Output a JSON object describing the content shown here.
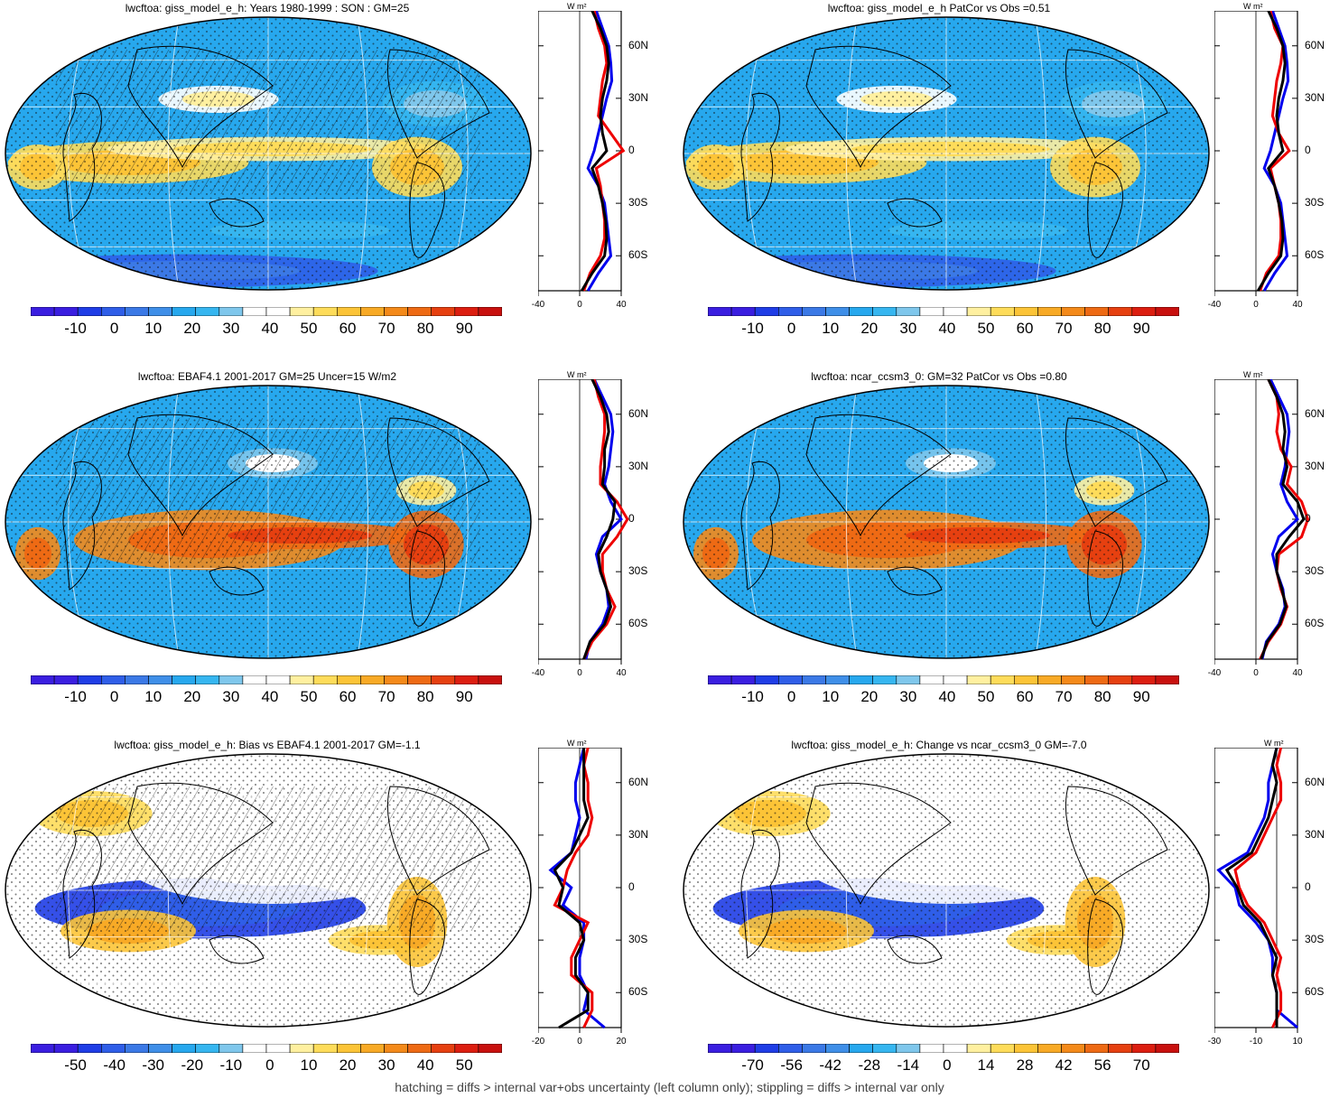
{
  "footer": "hatching = diffs > internal var+obs uncertainty (left column only); stippling = diffs > internal var only",
  "colors": {
    "absolute_scale": [
      "#3a1ee0",
      "#1f3de6",
      "#2f5ee8",
      "#3b79e6",
      "#3f8fe8",
      "#27a8ee",
      "#36b6f0",
      "#7fc7ec",
      "#ffffff",
      "#ffffff",
      "#fff0a0",
      "#fedc5a",
      "#fcc437",
      "#f8aa26",
      "#f48a1a",
      "#ee6a14",
      "#e64010",
      "#dc1e10",
      "#c8100e"
    ],
    "bias_scale": [
      "#3a1ee0",
      "#1f3de6",
      "#2f5ee8",
      "#3b79e6",
      "#3f8fe8",
      "#27a8ee",
      "#36b6f0",
      "#7fc7ec",
      "#ffffff",
      "#ffffff",
      "#fff0a0",
      "#fedc5a",
      "#fcc437",
      "#f8aa26",
      "#f48a1a",
      "#ee6a14",
      "#e64010",
      "#dc1e10",
      "#c8100e"
    ],
    "model_line": "#0000ee",
    "obs_line": "#ee0000",
    "mean_line": "#000000"
  },
  "chart_data": [
    {
      "type": "heatmap",
      "title": "lwcftoa: giss_model_e_h: Years 1980-1999 : SON : GM=25",
      "colorbar_labels": [
        "-10",
        "0",
        "10",
        "20",
        "30",
        "40",
        "50",
        "60",
        "70",
        "80",
        "90"
      ],
      "zonal_mean_profile": {
        "units": "W m²",
        "xticks": [
          "-40",
          "0",
          "40"
        ],
        "xlim": [
          -40,
          40
        ],
        "lat_labels": [
          "60N",
          "30N",
          "0",
          "30S",
          "60S"
        ],
        "lat": [
          80,
          70,
          60,
          50,
          40,
          30,
          20,
          10,
          0,
          -10,
          -20,
          -30,
          -40,
          -50,
          -60,
          -70,
          -80
        ],
        "series": [
          {
            "values": [
              16,
              22,
              28,
              30,
              31,
              26,
              22,
              18,
              14,
              8,
              18,
              24,
              26,
              28,
              30,
              18,
              8
            ]
          },
          {
            "values": [
              14,
              18,
              24,
              26,
              22,
              20,
              18,
              30,
              42,
              16,
              20,
              22,
              24,
              24,
              20,
              10,
              4
            ]
          },
          {
            "values": [
              12,
              20,
              26,
              28,
              26,
              22,
              20,
              22,
              26,
              12,
              18,
              22,
              25,
              26,
              24,
              12,
              2
            ]
          }
        ]
      }
    },
    {
      "type": "heatmap",
      "title": "lwcftoa: giss_model_e_h PatCor vs Obs =0.51",
      "colorbar_labels": [
        "-10",
        "0",
        "10",
        "20",
        "30",
        "40",
        "50",
        "60",
        "70",
        "80",
        "90"
      ],
      "zonal_mean_profile": {
        "units": "W m²",
        "xticks": [
          "-40",
          "0",
          "40"
        ],
        "xlim": [
          -40,
          40
        ],
        "lat_labels": [
          "60N",
          "30N",
          "0",
          "30S",
          "60S"
        ],
        "lat": [
          80,
          70,
          60,
          50,
          40,
          30,
          20,
          10,
          0,
          -10,
          -20,
          -30,
          -40,
          -50,
          -60,
          -70,
          -80
        ],
        "series": [
          {
            "values": [
              16,
              22,
              28,
              30,
              31,
              26,
              22,
              18,
              14,
              8,
              18,
              24,
              26,
              28,
              30,
              18,
              8
            ]
          },
          {
            "values": [
              14,
              18,
              26,
              24,
              20,
              18,
              16,
              22,
              32,
              14,
              18,
              22,
              24,
              24,
              22,
              10,
              4
            ]
          },
          {
            "values": [
              12,
              20,
              26,
              28,
              26,
              22,
              20,
              22,
              26,
              12,
              18,
              22,
              25,
              26,
              24,
              12,
              2
            ]
          }
        ]
      }
    },
    {
      "type": "heatmap",
      "title": "lwcftoa: EBAF4.1 2001-2017 GM=25 Uncer=15 W/m2",
      "colorbar_labels": [
        "-10",
        "0",
        "10",
        "20",
        "30",
        "40",
        "50",
        "60",
        "70",
        "80",
        "90"
      ],
      "zonal_mean_profile": {
        "units": "W m²",
        "xticks": [
          "-40",
          "0",
          "40"
        ],
        "xlim": [
          -40,
          40
        ],
        "lat_labels": [
          "60N",
          "30N",
          "0",
          "30S",
          "60S"
        ],
        "lat": [
          80,
          70,
          60,
          50,
          40,
          30,
          20,
          10,
          0,
          -10,
          -20,
          -30,
          -40,
          -50,
          -60,
          -70,
          -80
        ],
        "series": [
          {
            "values": [
              14,
              22,
              30,
              32,
              30,
              28,
              24,
              30,
              40,
              22,
              16,
              20,
              26,
              28,
              22,
              10,
              6
            ]
          },
          {
            "values": [
              14,
              18,
              24,
              24,
              22,
              20,
              20,
              36,
              46,
              36,
              22,
              22,
              26,
              34,
              26,
              12,
              4
            ]
          },
          {
            "values": [
              12,
              20,
              26,
              28,
              24,
              24,
              22,
              34,
              32,
              26,
              18,
              20,
              26,
              30,
              24,
              10,
              4
            ]
          }
        ]
      }
    },
    {
      "type": "heatmap",
      "title": "lwcftoa: ncar_ccsm3_0: GM=32 PatCor vs Obs =0.80",
      "colorbar_labels": [
        "-10",
        "0",
        "10",
        "20",
        "30",
        "40",
        "50",
        "60",
        "70",
        "80",
        "90"
      ],
      "zonal_mean_profile": {
        "units": "W m²",
        "xticks": [
          "-40",
          "0",
          "40"
        ],
        "xlim": [
          -40,
          40
        ],
        "lat_labels": [
          "60N",
          "30N",
          "0",
          "30S",
          "60S"
        ],
        "lat": [
          80,
          70,
          60,
          50,
          40,
          30,
          20,
          10,
          0,
          -10,
          -20,
          -30,
          -40,
          -50,
          -60,
          -70,
          -80
        ],
        "series": [
          {
            "values": [
              14,
              22,
              30,
              32,
              30,
              28,
              24,
              30,
              40,
              22,
              16,
              20,
              26,
              28,
              22,
              10,
              6
            ]
          },
          {
            "values": [
              12,
              20,
              22,
              20,
              24,
              34,
              30,
              44,
              50,
              44,
              22,
              20,
              24,
              30,
              24,
              12,
              4
            ]
          },
          {
            "values": [
              12,
              20,
              26,
              28,
              26,
              30,
              26,
              40,
              46,
              32,
              20,
              20,
              25,
              29,
              23,
              11,
              5
            ]
          }
        ]
      }
    },
    {
      "type": "heatmap",
      "title": "lwcftoa: giss_model_e_h: Bias vs EBAF4.1 2001-2017  GM=-1.1",
      "colorbar_labels": [
        "-50",
        "-40",
        "-30",
        "-20",
        "-10",
        "0",
        "10",
        "20",
        "30",
        "40",
        "50"
      ],
      "zonal_mean_profile": {
        "units": "W m²",
        "xticks": [
          "-20",
          "0",
          "20"
        ],
        "xlim": [
          -20,
          20
        ],
        "lat_labels": [
          "60N",
          "30N",
          "0",
          "30S",
          "60S"
        ],
        "lat": [
          80,
          70,
          60,
          50,
          40,
          30,
          20,
          10,
          0,
          -10,
          -20,
          -30,
          -40,
          -50,
          -60,
          -70,
          -80
        ],
        "series": [
          {
            "values": [
              2,
              0,
              -2,
              -2,
              0,
              -2,
              -4,
              -14,
              -4,
              -8,
              2,
              2,
              0,
              0,
              4,
              2,
              12
            ]
          },
          {
            "values": [
              4,
              2,
              4,
              4,
              6,
              4,
              -2,
              -6,
              -8,
              -12,
              4,
              0,
              -4,
              -4,
              6,
              6,
              2
            ]
          },
          {
            "values": [
              2,
              2,
              2,
              2,
              4,
              0,
              -4,
              -12,
              -8,
              -10,
              0,
              2,
              -2,
              -2,
              4,
              4,
              -10
            ]
          }
        ]
      }
    },
    {
      "type": "heatmap",
      "title": "lwcftoa: giss_model_e_h: Change vs ncar_ccsm3_0 GM=-7.0",
      "colorbar_labels": [
        "-70",
        "-56",
        "-42",
        "-28",
        "-14",
        "0",
        "14",
        "28",
        "42",
        "56",
        "70"
      ],
      "zonal_mean_profile": {
        "units": "W m²",
        "xticks": [
          "-30",
          "-10",
          "10"
        ],
        "xlim": [
          -30,
          10
        ],
        "lat_labels": [
          "60N",
          "30N",
          "0",
          "30S",
          "60S"
        ],
        "lat": [
          80,
          70,
          60,
          50,
          40,
          30,
          20,
          10,
          0,
          -10,
          -20,
          -30,
          -40,
          -50,
          -60,
          -70,
          -80
        ],
        "series": [
          {
            "values": [
              0,
              -2,
              -4,
              -4,
              -6,
              -10,
              -14,
              -28,
              -20,
              -18,
              -10,
              -4,
              -2,
              -2,
              0,
              0,
              10
            ]
          },
          {
            "values": [
              2,
              0,
              2,
              2,
              -2,
              -6,
              -10,
              -20,
              -18,
              -14,
              -6,
              -2,
              2,
              0,
              2,
              2,
              -2
            ]
          },
          {
            "values": [
              0,
              -2,
              0,
              -2,
              -4,
              -8,
              -12,
              -24,
              -19,
              -16,
              -8,
              -4,
              0,
              -2,
              0,
              0,
              0
            ]
          }
        ]
      }
    }
  ]
}
